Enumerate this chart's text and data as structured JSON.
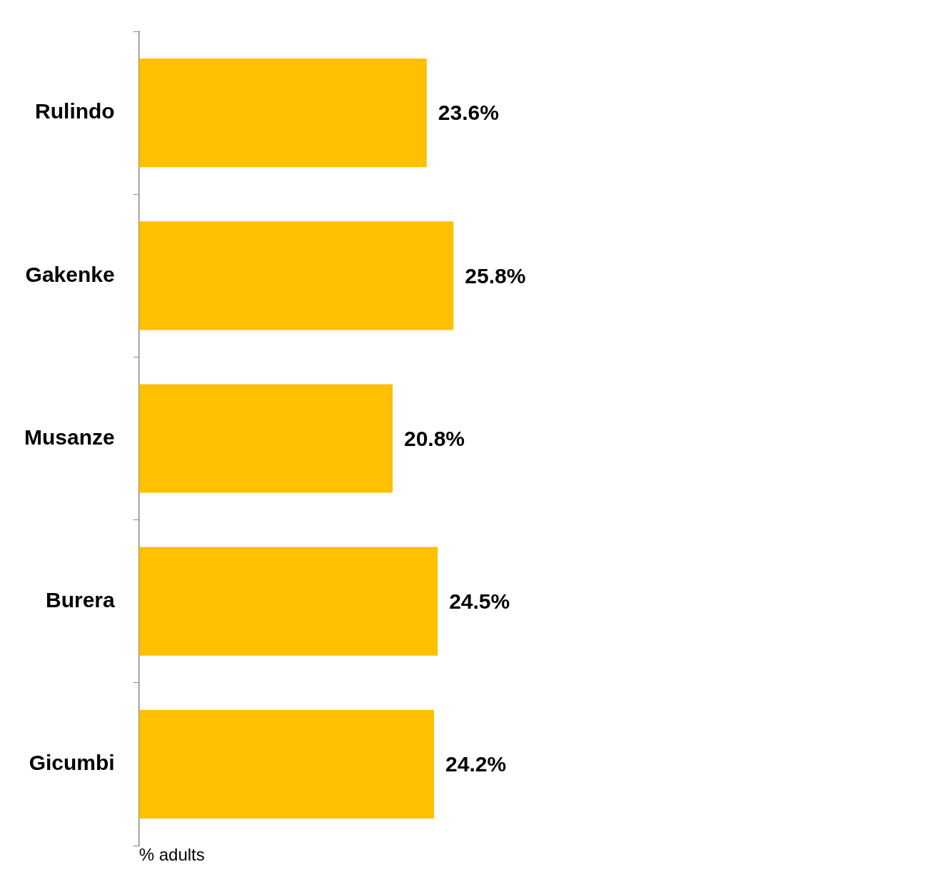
{
  "chart_data": {
    "type": "bar",
    "orientation": "horizontal",
    "categories": [
      "Rulindo",
      "Gakenke",
      "Musanze",
      "Burera",
      "Gicumbi"
    ],
    "values": [
      23.6,
      25.8,
      20.8,
      24.5,
      24.2
    ],
    "value_labels": [
      "23.6%",
      "25.8%",
      "20.8%",
      "24.5%",
      "24.2%"
    ],
    "color": "#ffc000",
    "xlabel": "% adults",
    "grid": false,
    "legend": false
  }
}
